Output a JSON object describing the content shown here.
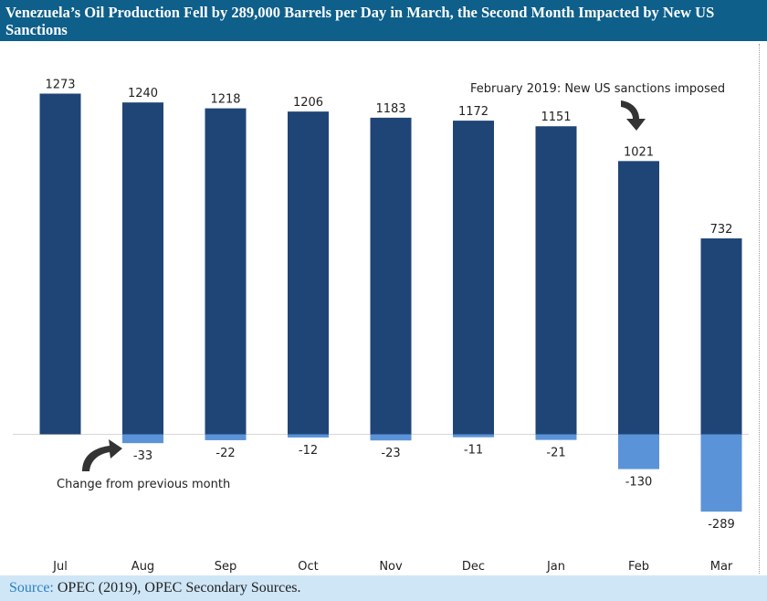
{
  "title": "Venezuela’s Oil Production Fell by 289,000 Barrels per Day in March, the Second Month Impacted by New US Sanctions",
  "source": {
    "label": "Source:",
    "text": " OPEC (2019), OPEC Secondary Sources."
  },
  "chart_data": {
    "type": "bar",
    "title": "Venezuela’s Oil Production Fell by 289,000 Barrels per Day in March, the Second Month Impacted by New US Sanctions",
    "xlabel": "",
    "ylabel": "",
    "ylim": [
      -350,
      1300
    ],
    "grid": false,
    "categories": [
      "Jul",
      "Aug",
      "Sep",
      "Oct",
      "Nov",
      "Dec",
      "Jan",
      "Feb",
      "Mar"
    ],
    "series": [
      {
        "name": "Production",
        "values": [
          1273,
          1240,
          1218,
          1206,
          1183,
          1172,
          1151,
          1021,
          732
        ],
        "labels": [
          "1273",
          "1240",
          "1218",
          "1206",
          "1183",
          "1172",
          "1151",
          "1021",
          "732"
        ]
      },
      {
        "name": "Change from previous month",
        "values": [
          null,
          -33,
          -22,
          -12,
          -23,
          -11,
          -21,
          -130,
          -289
        ],
        "labels": [
          "",
          "-33",
          "-22",
          "-12",
          "-23",
          "-11",
          "-21",
          "-130",
          "-289"
        ]
      }
    ],
    "annotations": {
      "change_note": "Change from previous month",
      "sanctions_note": "February 2019: New US sanctions imposed"
    },
    "colors": {
      "production": "#1f4577",
      "change": "#5b93d9",
      "arrow": "#333333"
    }
  }
}
